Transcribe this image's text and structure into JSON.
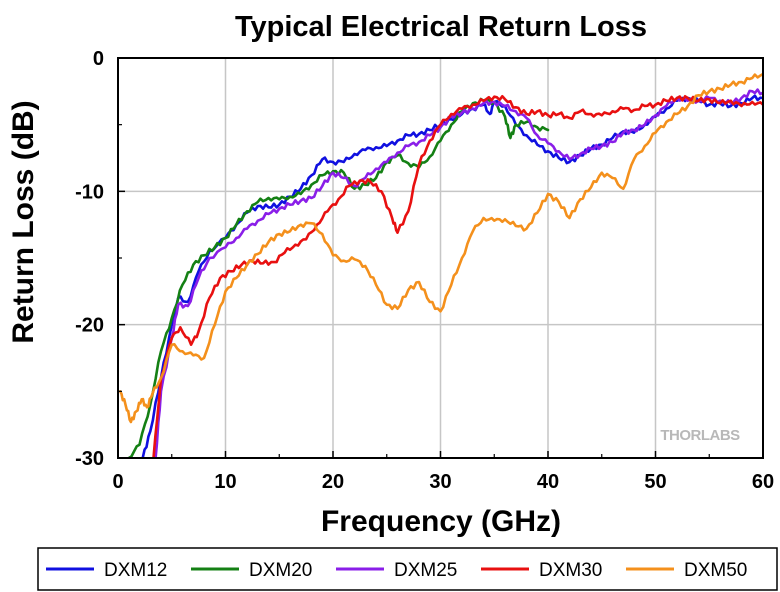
{
  "chart_data": {
    "type": "line",
    "title": "Typical Electrical Return Loss",
    "xlabel": "Frequency (GHz)",
    "ylabel": "Return Loss (dB)",
    "xlim": [
      0,
      60
    ],
    "ylim": [
      -30,
      0
    ],
    "xticks": [
      0,
      10,
      20,
      30,
      40,
      50,
      60
    ],
    "yticks": [
      0,
      -10,
      -20,
      -30
    ],
    "grid": true,
    "legend_position": "bottom",
    "watermark": "THORLABS",
    "series": [
      {
        "name": "DXM12",
        "color": "#1010e0",
        "x": [
          2.3,
          3.0,
          4.0,
          5.0,
          5.6,
          6.5,
          7.5,
          8.5,
          10,
          11,
          12,
          13,
          14,
          15,
          16,
          17,
          18,
          19,
          20,
          21,
          22,
          23,
          24,
          25,
          26,
          27,
          28,
          29,
          30,
          31,
          32,
          33,
          34,
          34.6,
          35,
          36,
          37,
          38,
          39,
          40,
          41,
          42,
          43,
          44,
          45,
          46,
          47,
          48,
          49,
          50,
          51,
          52,
          53,
          54,
          55,
          56,
          57,
          58,
          59,
          60
        ],
        "y": [
          -30,
          -28,
          -24,
          -20,
          -18,
          -18.3,
          -16,
          -14.5,
          -13.5,
          -12.5,
          -11.6,
          -11.1,
          -11.2,
          -11,
          -10.4,
          -9.8,
          -8.8,
          -7.6,
          -7.8,
          -7.8,
          -7.2,
          -6.9,
          -6.7,
          -6.6,
          -6.2,
          -5.8,
          -5.7,
          -5.4,
          -5.0,
          -4.6,
          -4.2,
          -3.8,
          -3.5,
          -4.2,
          -3.3,
          -3.6,
          -5.0,
          -5.8,
          -6.5,
          -7.0,
          -7.5,
          -7.8,
          -7.3,
          -6.8,
          -6.5,
          -6.0,
          -5.5,
          -5.6,
          -5.0,
          -4.4,
          -3.8,
          -3.2,
          -3.0,
          -3.2,
          -3.5,
          -3.4,
          -3.6,
          -3.4,
          -3.0,
          -3.0
        ]
      },
      {
        "name": "DXM20",
        "color": "#148014",
        "x": [
          1.0,
          2.0,
          3.0,
          4.0,
          5.0,
          6.0,
          7.0,
          8.0,
          9.0,
          10,
          11,
          12,
          13,
          14,
          15,
          16,
          17,
          18,
          19,
          20,
          21,
          22,
          23,
          24,
          25,
          26,
          27,
          28,
          29,
          30,
          31,
          32,
          33,
          34,
          35,
          36,
          36.5,
          37,
          38,
          39,
          40
        ],
        "y": [
          -30,
          -29,
          -26,
          -22,
          -19.5,
          -17,
          -15.5,
          -14.8,
          -14.2,
          -13.5,
          -12.5,
          -11.5,
          -10.8,
          -10.5,
          -10.6,
          -10.4,
          -10.2,
          -9.5,
          -8.8,
          -8.5,
          -8.6,
          -9.8,
          -9.5,
          -9.0,
          -7.8,
          -7.3,
          -7.9,
          -8.2,
          -7.4,
          -6.2,
          -5.0,
          -4.0,
          -3.4,
          -3.2,
          -3.3,
          -4.4,
          -6.0,
          -5.0,
          -4.8,
          -5.2,
          -5.4
        ]
      },
      {
        "name": "DXM25",
        "color": "#8a1ee8",
        "x": [
          3.5,
          4.0,
          5.0,
          5.6,
          6.5,
          7.5,
          8.5,
          10,
          11,
          12,
          13,
          14,
          15,
          16,
          17,
          18,
          19,
          20,
          21,
          22,
          23,
          24,
          25,
          26,
          27,
          28,
          29,
          30,
          31,
          32,
          33,
          34,
          35,
          36,
          37,
          38,
          39,
          40,
          41,
          42,
          43,
          44,
          45,
          46,
          47,
          48,
          49,
          50,
          51,
          52,
          53,
          54,
          55,
          56,
          57,
          58,
          59,
          60
        ],
        "y": [
          -30,
          -25,
          -21,
          -18.5,
          -18.6,
          -16.5,
          -15,
          -14.2,
          -13.5,
          -12.8,
          -12.2,
          -11.7,
          -11.3,
          -11.0,
          -10.7,
          -10.5,
          -9.6,
          -8.6,
          -9.0,
          -9.6,
          -9.0,
          -8.3,
          -7.8,
          -7.1,
          -6.6,
          -6.3,
          -5.8,
          -5.2,
          -4.4,
          -4.1,
          -3.8,
          -3.4,
          -3.3,
          -3.6,
          -4.0,
          -4.5,
          -5.8,
          -6.4,
          -7.0,
          -7.6,
          -7.2,
          -6.8,
          -6.6,
          -6.3,
          -5.6,
          -5.4,
          -5.0,
          -4.3,
          -3.6,
          -3.0,
          -3.2,
          -3.2,
          -3.0,
          -3.2,
          -3.4,
          -3.0,
          -2.5,
          -2.6
        ]
      },
      {
        "name": "DXM30",
        "color": "#e81010",
        "x": [
          3.3,
          4.0,
          5.0,
          5.8,
          6.8,
          7.5,
          8.5,
          9.5,
          10.5,
          11.5,
          12.5,
          13.5,
          14.5,
          15.5,
          16.5,
          17.5,
          18.5,
          19.5,
          20.5,
          21.5,
          22.5,
          23.5,
          24.5,
          25.5,
          26,
          27,
          28,
          29,
          30,
          31,
          32,
          33,
          34,
          35,
          36,
          37,
          38,
          39,
          40,
          41,
          42,
          43,
          44,
          45,
          46,
          47,
          48,
          49,
          50,
          51,
          52,
          53,
          54,
          55,
          56,
          57,
          58,
          59,
          60
        ],
        "y": [
          -30,
          -24,
          -21,
          -20.2,
          -21.5,
          -20.5,
          -18,
          -16.5,
          -16,
          -15.5,
          -15.2,
          -15.4,
          -15.3,
          -14.6,
          -14.0,
          -13.6,
          -12.5,
          -11.5,
          -10.6,
          -9.6,
          -9.2,
          -9.3,
          -10.0,
          -12.0,
          -13.1,
          -11.5,
          -8.0,
          -6.2,
          -5.0,
          -4.2,
          -3.8,
          -3.5,
          -3.2,
          -2.9,
          -3.1,
          -3.7,
          -4.2,
          -4.0,
          -4.3,
          -4.2,
          -4.5,
          -4.0,
          -4.2,
          -4.3,
          -4.0,
          -3.8,
          -3.9,
          -3.6,
          -3.5,
          -3.2,
          -3.0,
          -3.0,
          -3.2,
          -3.1,
          -3.4,
          -3.2,
          -3.6,
          -3.3,
          -3.5
        ]
      },
      {
        "name": "DXM50",
        "color": "#f4901c",
        "x": [
          0.2,
          0.7,
          1.2,
          1.7,
          2.2,
          2.7,
          3.2,
          4.0,
          5.0,
          6.0,
          7.0,
          8.0,
          9.0,
          10,
          11,
          12,
          13,
          14,
          15,
          16,
          17,
          18,
          19,
          20,
          21,
          22,
          23,
          24,
          25,
          26,
          27,
          28,
          29,
          30,
          31,
          32,
          33,
          34,
          35,
          36,
          37,
          38,
          39,
          40,
          41,
          42,
          43,
          44,
          45,
          46,
          47,
          48,
          49,
          50,
          51,
          52,
          53,
          54,
          55,
          56,
          57,
          58,
          59,
          60
        ],
        "y": [
          -25,
          -26,
          -27.3,
          -26.5,
          -25.6,
          -26.2,
          -25.2,
          -24.0,
          -21.5,
          -22.0,
          -22.3,
          -22.5,
          -20,
          -17.5,
          -16.5,
          -15.5,
          -14.7,
          -13.8,
          -13.2,
          -13.0,
          -12.5,
          -12.4,
          -13.2,
          -14.8,
          -15.2,
          -15.1,
          -15.6,
          -17.0,
          -18.5,
          -18.8,
          -17.4,
          -16.8,
          -18.3,
          -19.0,
          -17.0,
          -15.0,
          -13.0,
          -12.0,
          -12.2,
          -12.1,
          -12.6,
          -12.8,
          -11.6,
          -10.2,
          -10.8,
          -12.0,
          -10.6,
          -9.7,
          -8.6,
          -9.0,
          -9.8,
          -7.6,
          -6.6,
          -5.6,
          -4.8,
          -4.2,
          -3.6,
          -2.8,
          -2.5,
          -2.3,
          -2.0,
          -1.8,
          -1.5,
          -1.2
        ]
      }
    ]
  }
}
